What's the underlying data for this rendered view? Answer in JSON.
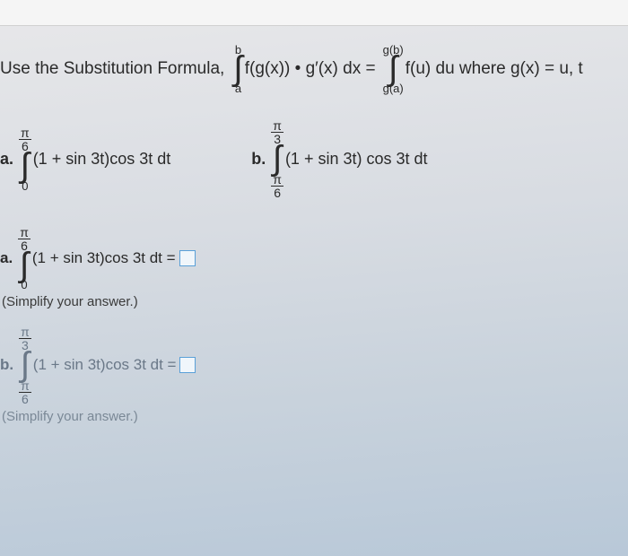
{
  "topline": {
    "intro": "Use the Substitution Formula,",
    "int1_top": "b",
    "int1_bot": "a",
    "int1_body": "f(g(x)) • g′(x) dx =",
    "int2_top": "g(b)",
    "int2_bot": "g(a)",
    "int2_body": "f(u) du where g(x) = u, t"
  },
  "partA": {
    "label": "a.",
    "top_n": "π",
    "top_d": "6",
    "bot": "0",
    "body": "(1 + sin 3t)cos 3t dt"
  },
  "partB": {
    "label": "b.",
    "top_n": "π",
    "top_d": "3",
    "bot_n": "π",
    "bot_d": "6",
    "body": "(1 + sin 3t) cos 3t dt"
  },
  "ansA": {
    "label": "a.",
    "top_n": "π",
    "top_d": "6",
    "bot": "0",
    "body": "(1 + sin 3t)cos 3t dt =",
    "hint": "(Simplify your answer.)"
  },
  "ansB": {
    "label": "b.",
    "top_n": "π",
    "top_d": "3",
    "bot_n": "π",
    "bot_d": "6",
    "body": "(1 + sin 3t)cos 3t dt =",
    "hint": "(Simplify your answer.)"
  }
}
